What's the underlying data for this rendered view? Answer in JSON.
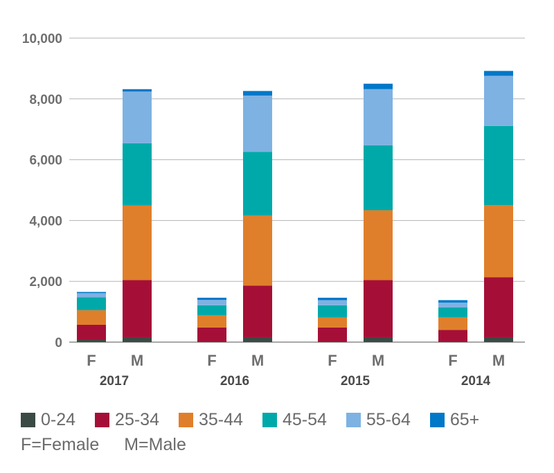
{
  "chart_data": {
    "type": "bar",
    "stacked": true,
    "ylim": [
      0,
      10000
    ],
    "yticks": [
      "0",
      "2,000",
      "4,000",
      "6,000",
      "8,000",
      "10,000"
    ],
    "grid": true,
    "groups": [
      {
        "year": "2017",
        "bars": [
          {
            "sex": "F",
            "values": [
              80,
              490,
              480,
              420,
              140,
              40
            ]
          },
          {
            "sex": "M",
            "values": [
              160,
              1880,
              2450,
              2050,
              1700,
              80
            ]
          }
        ]
      },
      {
        "year": "2016",
        "bars": [
          {
            "sex": "F",
            "values": [
              10,
              470,
              400,
              330,
              180,
              70
            ]
          },
          {
            "sex": "M",
            "values": [
              160,
              1700,
              2300,
              2100,
              1850,
              150
            ]
          }
        ]
      },
      {
        "year": "2015",
        "bars": [
          {
            "sex": "F",
            "values": [
              10,
              470,
              330,
              400,
              170,
              80
            ]
          },
          {
            "sex": "M",
            "values": [
              160,
              1880,
              2300,
              2130,
              1850,
              180
            ]
          }
        ]
      },
      {
        "year": "2014",
        "bars": [
          {
            "sex": "F",
            "values": [
              10,
              390,
              420,
              320,
              160,
              80
            ]
          },
          {
            "sex": "M",
            "values": [
              160,
              1970,
              2380,
              2600,
              1650,
              160
            ]
          }
        ]
      }
    ],
    "series": [
      {
        "name": "0-24",
        "color": "#3a4a44"
      },
      {
        "name": "25-34",
        "color": "#a50f37"
      },
      {
        "name": "35-44",
        "color": "#e07f2b"
      },
      {
        "name": "45-54",
        "color": "#00a9a9"
      },
      {
        "name": "55-64",
        "color": "#7eb2e2"
      },
      {
        "name": "65+",
        "color": "#0078c8"
      }
    ]
  },
  "legend_note": {
    "female": "F=Female",
    "male": "M=Male"
  }
}
